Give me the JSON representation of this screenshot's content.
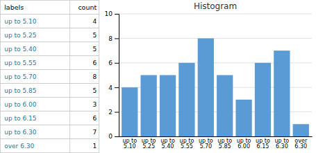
{
  "chart_data": [
    {
      "type": "table",
      "columns": [
        "labels",
        "count"
      ],
      "categories": [
        "up to 5.10",
        "up to 5.25",
        "up to 5.40",
        "up to 5.55",
        "up to 5.70",
        "up to 5.85",
        "up to 6.00",
        "up to 6.15",
        "up to 6.30",
        "over 6.30"
      ],
      "values": [
        4,
        5,
        5,
        6,
        8,
        5,
        3,
        6,
        7,
        1
      ],
      "color": "#1F7B9E"
    },
    {
      "type": "bar",
      "title": "Histogram",
      "categories": [
        "up to\n5.10",
        "up to\n5.25",
        "up to\n5.40",
        "up to\n5.55",
        "up to\n5.70",
        "up to\n5.85",
        "up to\n6.00",
        "up to\n6.15",
        "up to\n6.30",
        "over\n6.30"
      ],
      "values": [
        4,
        5,
        5,
        6,
        8,
        5,
        3,
        6,
        7,
        1
      ],
      "color": "#5B9BD5",
      "ylim": [
        0,
        10
      ],
      "yticks": [
        0,
        2,
        4,
        6,
        8,
        10
      ],
      "grid": true
    }
  ]
}
